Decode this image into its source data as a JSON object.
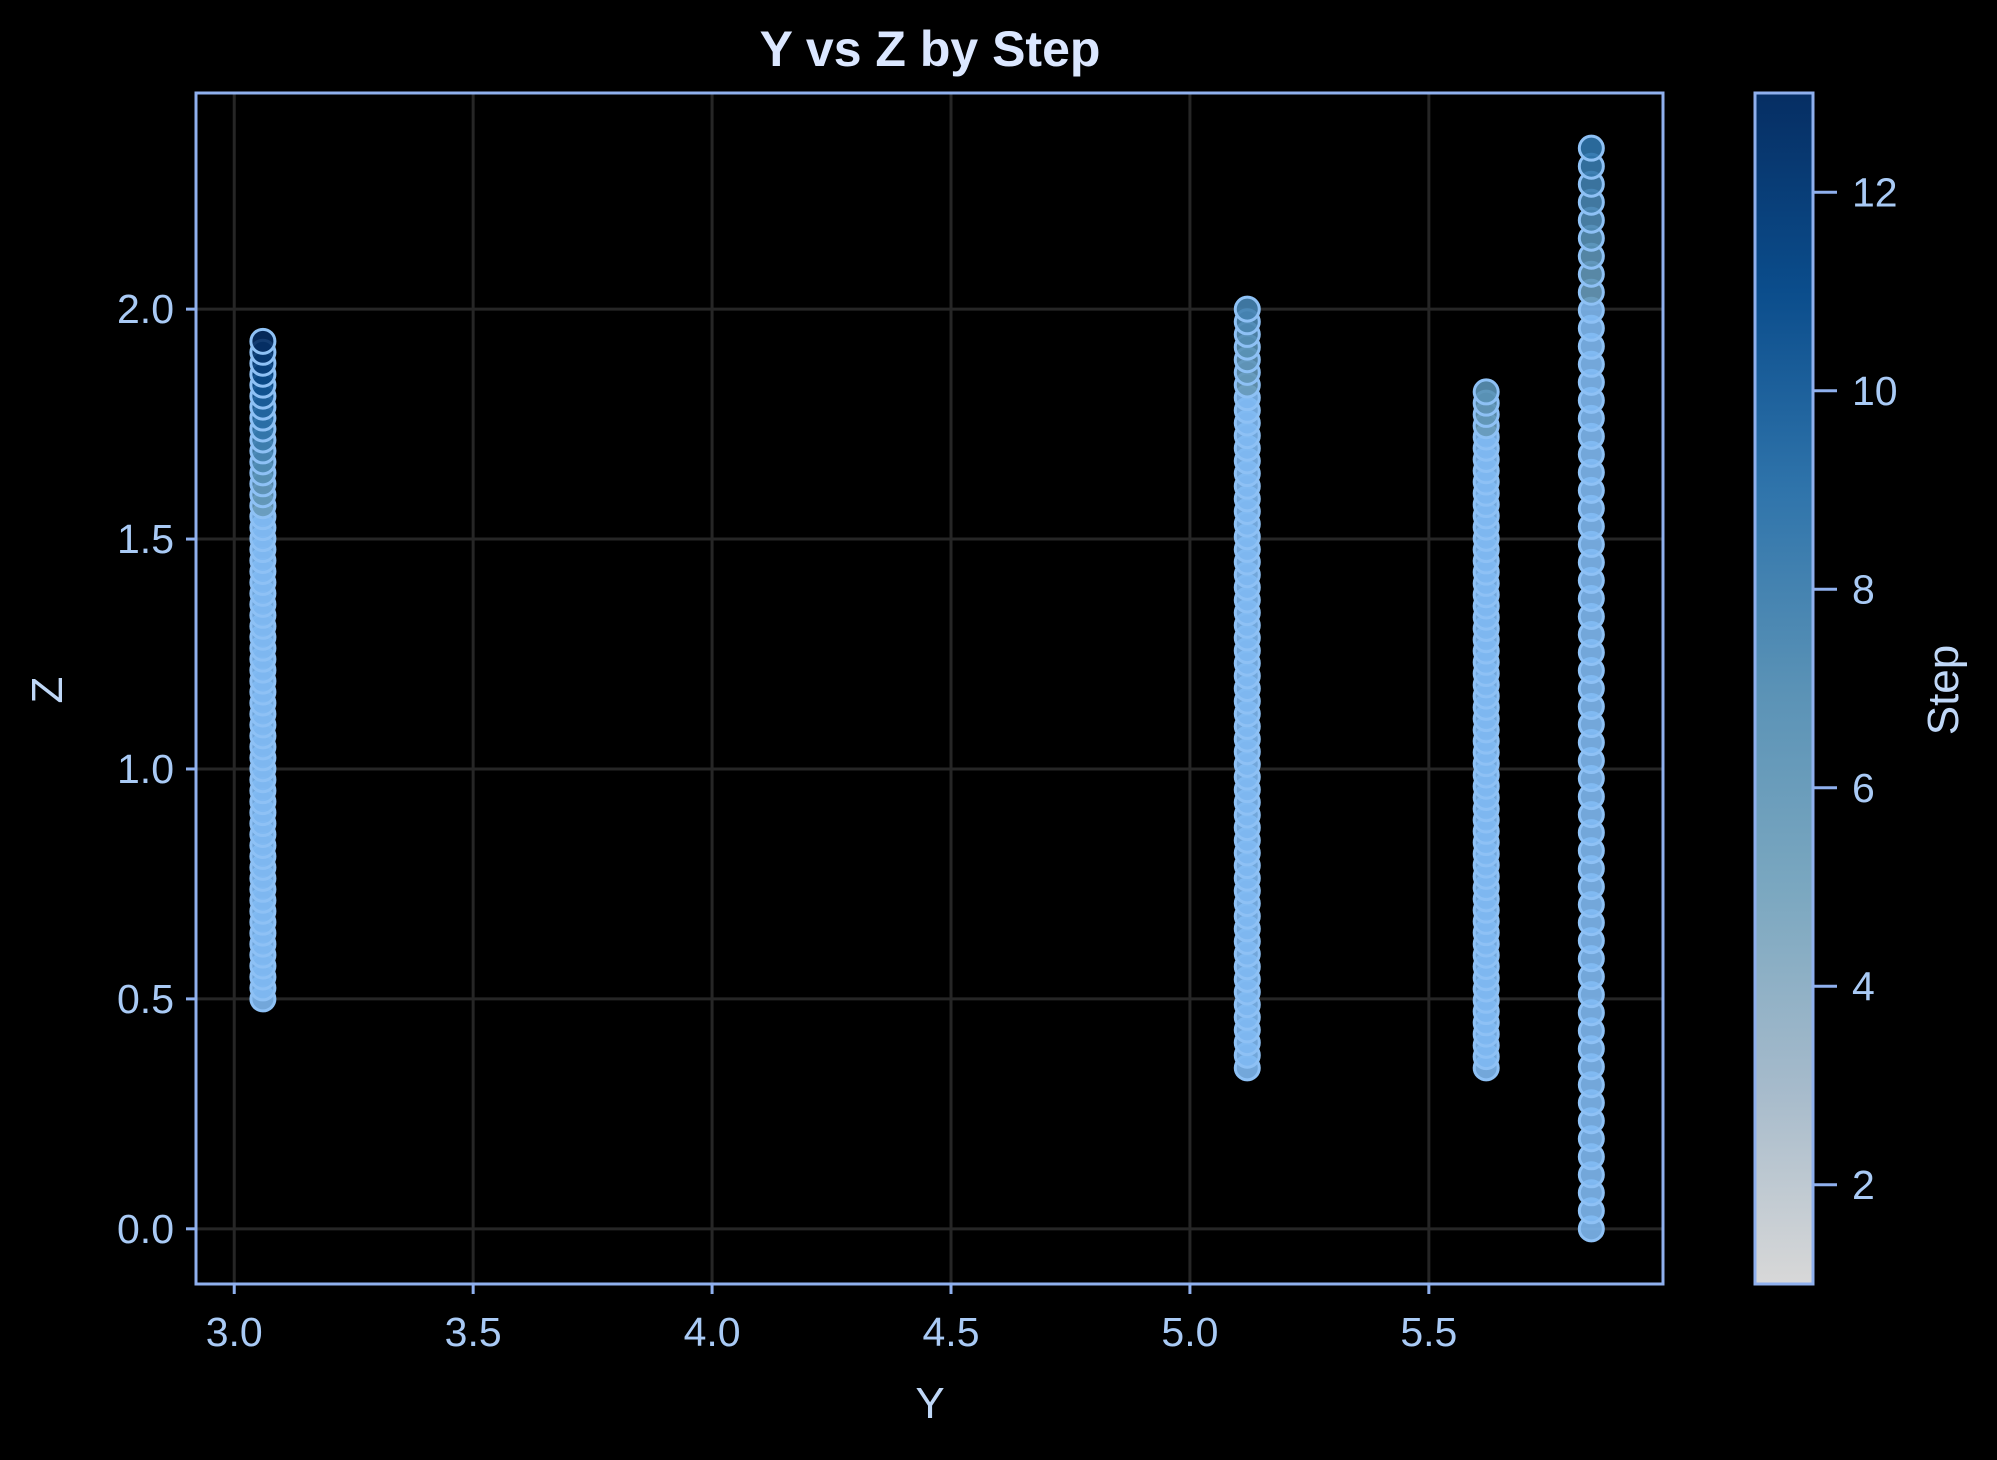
{
  "chart_data": {
    "type": "scatter",
    "title": "Y vs Z by Step",
    "xlabel": "Y",
    "ylabel": "Z",
    "xlim": [
      2.92,
      5.99
    ],
    "ylim": [
      -0.12,
      2.47
    ],
    "xticks": [
      "3.0",
      "3.5",
      "4.0",
      "4.5",
      "5.0",
      "5.5"
    ],
    "xtick_values": [
      3.0,
      3.5,
      4.0,
      4.5,
      5.0,
      5.5
    ],
    "yticks": [
      "0.0",
      "0.5",
      "1.0",
      "1.5",
      "2.0"
    ],
    "ytick_values": [
      0.0,
      0.5,
      1.0,
      1.5,
      2.0
    ],
    "grid": true,
    "colorbar": {
      "label": "Step",
      "range": [
        1,
        13
      ],
      "ticks": [
        "2",
        "4",
        "6",
        "8",
        "10",
        "12"
      ],
      "tick_values": [
        2,
        4,
        6,
        8,
        10,
        12
      ],
      "colormap": [
        "#d8d8d8",
        "#a5bacb",
        "#7aa7c0",
        "#5a92b6",
        "#2f74ab",
        "#0b4d8c",
        "#062e63"
      ]
    },
    "series": [
      {
        "y": 3.06,
        "z_start": 0.5,
        "z_end": 1.93,
        "step_start": 1,
        "step_end": 13
      },
      {
        "y": 5.12,
        "z_start": 0.35,
        "z_end": 2.0,
        "step_start": 1,
        "step_end": 8
      },
      {
        "y": 5.62,
        "z_start": 0.35,
        "z_end": 1.82,
        "step_start": 1,
        "step_end": 7
      },
      {
        "y": 5.84,
        "z_start": 0.0,
        "z_end": 2.35,
        "step_start": 1,
        "step_end": 9
      }
    ],
    "colors": {
      "background": "#000000",
      "frame": "#8fb0ee",
      "grid": "#262626",
      "marker_edge": "#8ec1f5",
      "marker_fill": "#7fb9f2"
    }
  }
}
